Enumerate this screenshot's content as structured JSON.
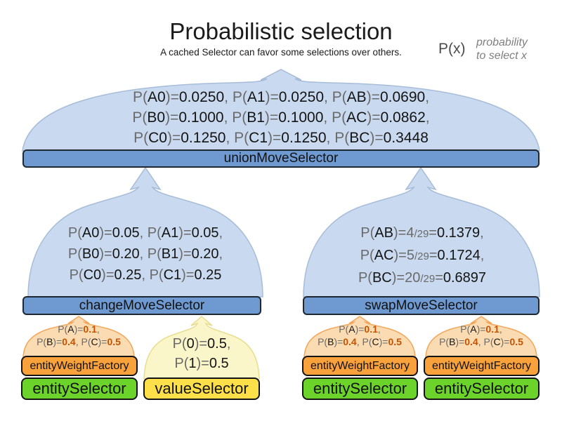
{
  "header": {
    "title": "Probabilistic selection",
    "subtitle": "A cached Selector can favor some selections over others.",
    "legend": {
      "symbol": "P(x)",
      "desc_line1": "probability",
      "desc_line2": "to select x"
    }
  },
  "colors": {
    "dome_blue_fill": "#c9daf0",
    "dome_blue_stroke": "#a6bcd8",
    "bar_fill": "#6f9ad1",
    "bar_stroke": "#1f2730",
    "orange_box_fill": "#f9a13b",
    "green_box_fill": "#6cd32b",
    "yellow_box_fill": "#fde049",
    "dome_orange_fill": "#fbdcb2",
    "dome_orange_stroke": "#f2a65a",
    "dome_yellow_fill": "#fbf5ca",
    "dome_yellow_stroke": "#e9dd8f",
    "probability_value_orange": "#c55200"
  },
  "union": {
    "label": "unionMoveSelector",
    "lines": [
      [
        [
          "P(",
          "g"
        ],
        [
          "A0",
          "k"
        ],
        [
          ")=",
          "g"
        ],
        [
          "0.0250",
          "k"
        ],
        [
          ", ",
          "g"
        ],
        [
          "P(",
          "g"
        ],
        [
          "A1",
          "k"
        ],
        [
          ")=",
          "g"
        ],
        [
          "0.0250",
          "k"
        ],
        [
          ", ",
          "g"
        ],
        [
          "P(",
          "g"
        ],
        [
          "AB",
          "k"
        ],
        [
          ")=",
          "g"
        ],
        [
          "0.0690",
          "k"
        ],
        [
          ",",
          "g"
        ]
      ],
      [
        [
          "P(",
          "g"
        ],
        [
          "B0",
          "k"
        ],
        [
          ")=",
          "g"
        ],
        [
          "0.1000",
          "k"
        ],
        [
          ", ",
          "g"
        ],
        [
          "P(",
          "g"
        ],
        [
          "B1",
          "k"
        ],
        [
          ")=",
          "g"
        ],
        [
          "0.1000",
          "k"
        ],
        [
          ", ",
          "g"
        ],
        [
          "P(",
          "g"
        ],
        [
          "AC",
          "k"
        ],
        [
          ")=",
          "g"
        ],
        [
          "0.0862",
          "k"
        ],
        [
          ",",
          "g"
        ]
      ],
      [
        [
          "P(",
          "g"
        ],
        [
          "C0",
          "k"
        ],
        [
          ")=",
          "g"
        ],
        [
          "0.1250",
          "k"
        ],
        [
          ", ",
          "g"
        ],
        [
          "P(",
          "g"
        ],
        [
          "C1",
          "k"
        ],
        [
          ")=",
          "g"
        ],
        [
          "0.1250",
          "k"
        ],
        [
          ", ",
          "g"
        ],
        [
          "P(",
          "g"
        ],
        [
          "BC",
          "k"
        ],
        [
          ")=",
          "g"
        ],
        [
          "0.3448",
          "k"
        ]
      ]
    ]
  },
  "change": {
    "label": "changeMoveSelector",
    "lines": [
      [
        [
          "P(",
          "g"
        ],
        [
          "A0",
          "k"
        ],
        [
          ")=",
          "g"
        ],
        [
          "0.05",
          "k"
        ],
        [
          ", ",
          "g"
        ],
        [
          "P(",
          "g"
        ],
        [
          "A1",
          "k"
        ],
        [
          ")=",
          "g"
        ],
        [
          "0.05",
          "k"
        ],
        [
          ",",
          "g"
        ]
      ],
      [
        [
          "P(",
          "g"
        ],
        [
          "B0",
          "k"
        ],
        [
          ")=",
          "g"
        ],
        [
          "0.20",
          "k"
        ],
        [
          ", ",
          "g"
        ],
        [
          "P(",
          "g"
        ],
        [
          "B1",
          "k"
        ],
        [
          ")=",
          "g"
        ],
        [
          "0.20",
          "k"
        ],
        [
          ",",
          "g"
        ]
      ],
      [
        [
          "P(",
          "g"
        ],
        [
          "C0",
          "k"
        ],
        [
          ")=",
          "g"
        ],
        [
          "0.25",
          "k"
        ],
        [
          ", ",
          "g"
        ],
        [
          "P(",
          "g"
        ],
        [
          "C1",
          "k"
        ],
        [
          ")=",
          "g"
        ],
        [
          "0.25",
          "k"
        ]
      ]
    ]
  },
  "swap": {
    "label": "swapMoveSelector",
    "lines": [
      [
        [
          "P(",
          "g"
        ],
        [
          "AB",
          "k"
        ],
        [
          ")=",
          "g"
        ],
        [
          "4",
          "g"
        ],
        [
          "/29",
          "s"
        ],
        [
          "=",
          "g"
        ],
        [
          "0.1379",
          "k"
        ],
        [
          ",",
          "g"
        ]
      ],
      [
        [
          "P(",
          "g"
        ],
        [
          "AC",
          "k"
        ],
        [
          ")=",
          "g"
        ],
        [
          "5",
          "g"
        ],
        [
          "/29",
          "s"
        ],
        [
          "=",
          "g"
        ],
        [
          "0.1724",
          "k"
        ],
        [
          ",",
          "g"
        ]
      ],
      [
        [
          "P(",
          "g"
        ],
        [
          "BC",
          "k"
        ],
        [
          ")=",
          "g"
        ],
        [
          "20",
          "g"
        ],
        [
          "/29",
          "s"
        ],
        [
          "=",
          "g"
        ],
        [
          "0.6897",
          "k"
        ]
      ]
    ]
  },
  "entity_weight": {
    "label": "entityWeightFactory",
    "lines": [
      [
        [
          "P(",
          "g"
        ],
        [
          "A",
          "k"
        ],
        [
          ")=",
          "g"
        ],
        [
          "0.1",
          "o"
        ],
        [
          ",",
          "g"
        ]
      ],
      [
        [
          "P(",
          "g"
        ],
        [
          "B",
          "k"
        ],
        [
          ")=",
          "g"
        ],
        [
          "0.4",
          "o"
        ],
        [
          ", ",
          "g"
        ],
        [
          "P(",
          "g"
        ],
        [
          "C",
          "k"
        ],
        [
          ")=",
          "g"
        ],
        [
          "0.5",
          "o"
        ]
      ]
    ]
  },
  "value_selector": {
    "label": "valueSelector",
    "lines": [
      [
        [
          "P(",
          "g"
        ],
        [
          "0",
          "k"
        ],
        [
          ")=",
          "g"
        ],
        [
          "0.5",
          "k"
        ],
        [
          ",",
          "g"
        ]
      ],
      [
        [
          "P(",
          "g"
        ],
        [
          "1",
          "k"
        ],
        [
          ")=",
          "g"
        ],
        [
          "0.5",
          "k"
        ]
      ]
    ]
  },
  "entity_selector": {
    "label": "entitySelector"
  }
}
